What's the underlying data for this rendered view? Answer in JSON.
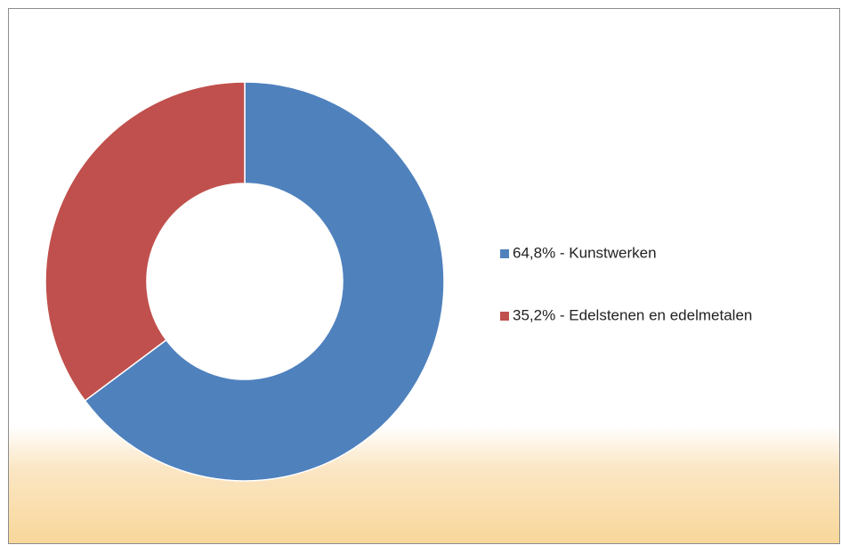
{
  "chart_data": {
    "type": "donut",
    "categories": [
      "64,8% - Kunstwerken",
      "35,2% - Edelstenen en edelmetalen"
    ],
    "values": [
      64.8,
      35.2
    ],
    "colors": [
      "#4f81bd",
      "#c0504d"
    ],
    "legend": "right"
  }
}
